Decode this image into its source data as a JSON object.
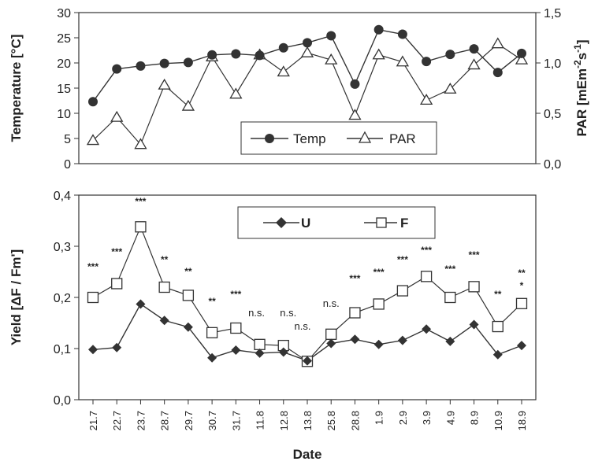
{
  "chart_data": [
    {
      "type": "line",
      "title": "",
      "ylabel": "Temperature [°C]",
      "y2label": "PAR  [mEm-2s-1]",
      "ylim": [
        0,
        30
      ],
      "y2lim": [
        0,
        1.5
      ],
      "yticks": [
        "0",
        "5",
        "10",
        "15",
        "20",
        "25",
        "30"
      ],
      "y2ticks": [
        "0,0",
        "0,5",
        "1,0",
        "1,5"
      ],
      "legend_position": "bottom-center",
      "series": [
        {
          "name": "Temp",
          "axis": "left",
          "marker": "circle",
          "values": [
            12.3,
            18.8,
            19.4,
            19.9,
            20.1,
            21.6,
            21.8,
            21.5,
            23.0,
            24.0,
            25.4,
            15.8,
            26.6,
            25.7,
            20.3,
            21.7,
            22.8,
            18.1,
            21.9
          ]
        },
        {
          "name": "PAR",
          "axis": "right",
          "marker": "triangle",
          "values": [
            0.23,
            0.46,
            0.19,
            0.78,
            0.57,
            1.06,
            0.69,
            1.08,
            0.91,
            1.1,
            1.03,
            0.48,
            1.08,
            1.01,
            0.63,
            0.74,
            0.98,
            1.19,
            1.03
          ]
        }
      ]
    },
    {
      "type": "line",
      "title": "",
      "xlabel": "Date",
      "ylabel": "Yield  [ΔF / Fm']",
      "ylim": [
        0,
        0.4
      ],
      "yticks": [
        "0,0",
        "0,1",
        "0,2",
        "0,3",
        "0,4"
      ],
      "legend_position": "top-center",
      "categories": [
        "21.7",
        "22.7",
        "23.7",
        "28.7",
        "29.7",
        "30.7",
        "31.7",
        "11.8",
        "12.8",
        "13.8",
        "25.8",
        "28.8",
        "1.9",
        "2.9",
        "3.9",
        "4.9",
        "8.9",
        "10.9",
        "18.9"
      ],
      "series": [
        {
          "name": "U",
          "marker": "diamond",
          "values": [
            0.098,
            0.102,
            0.187,
            0.155,
            0.142,
            0.082,
            0.097,
            0.091,
            0.093,
            0.076,
            0.11,
            0.118,
            0.108,
            0.116,
            0.138,
            0.114,
            0.147,
            0.088,
            0.106
          ]
        },
        {
          "name": "F",
          "marker": "square",
          "values": [
            0.2,
            0.227,
            0.338,
            0.22,
            0.204,
            0.131,
            0.14,
            0.108,
            0.106,
            0.075,
            0.128,
            0.17,
            0.187,
            0.213,
            0.241,
            0.2,
            0.221,
            0.143,
            0.188
          ]
        }
      ],
      "annotations": [
        "***",
        "***",
        "***",
        "**",
        "**",
        "**",
        "***",
        "n.s.",
        "n.s.",
        "n.s.",
        "n.s.",
        "***",
        "***",
        "***",
        "***",
        "***",
        "***",
        "**",
        "**\n*"
      ]
    }
  ]
}
